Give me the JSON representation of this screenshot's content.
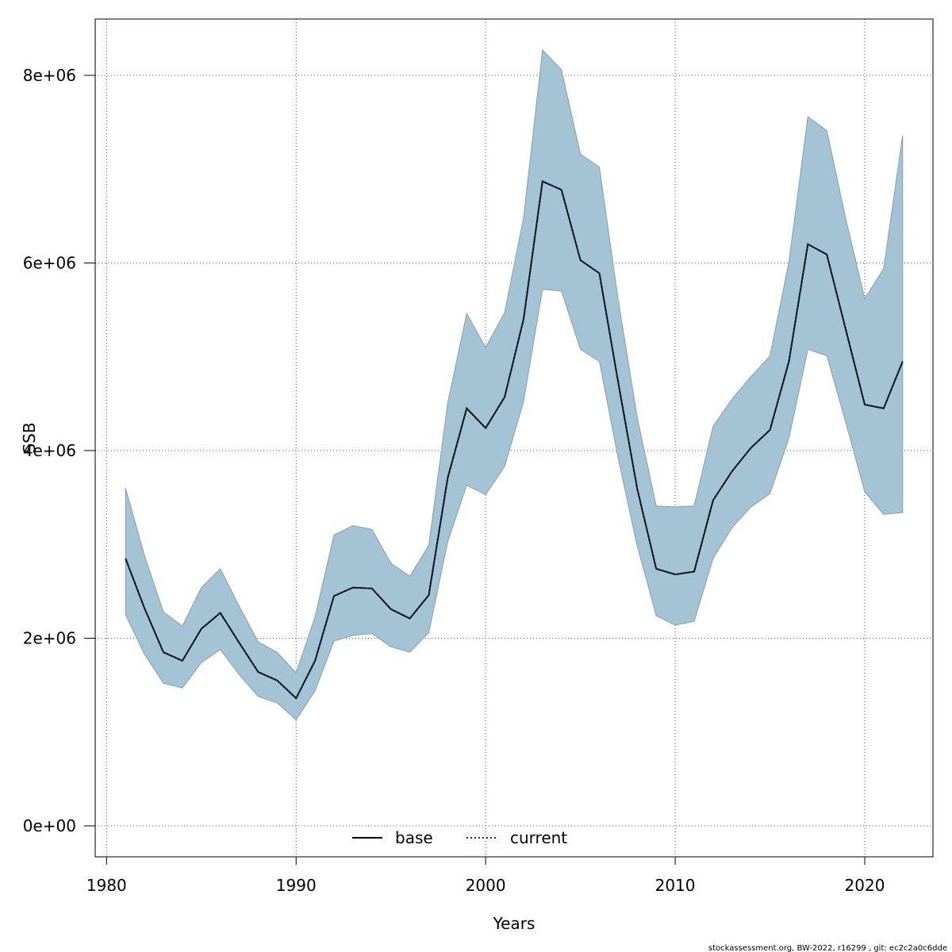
{
  "chart_data": {
    "type": "area",
    "xlabel": "Years",
    "ylabel": "SSB",
    "xlim": [
      1979.4,
      2023.6
    ],
    "ylim": [
      -330000,
      8600000
    ],
    "xticks": [
      1980,
      1990,
      2000,
      2010,
      2020
    ],
    "yticks": [
      0,
      2000000,
      4000000,
      6000000,
      8000000
    ],
    "ytick_labels": [
      "0e+00",
      "2e+06",
      "4e+06",
      "6e+06",
      "8e+06"
    ],
    "grid": true,
    "legend_position": "bottom-center",
    "x": [
      1981,
      1982,
      1983,
      1984,
      1985,
      1986,
      1987,
      1988,
      1989,
      1990,
      1991,
      1992,
      1993,
      1994,
      1995,
      1996,
      1997,
      1998,
      1999,
      2000,
      2001,
      2002,
      2003,
      2004,
      2005,
      2006,
      2007,
      2008,
      2009,
      2010,
      2011,
      2012,
      2013,
      2014,
      2015,
      2016,
      2017,
      2018,
      2019,
      2020,
      2021,
      2022
    ],
    "series": [
      {
        "name": "base",
        "style": "solid",
        "color": "#000000",
        "values": [
          2850000,
          2320000,
          1850000,
          1760000,
          2100000,
          2270000,
          1950000,
          1640000,
          1550000,
          1360000,
          1760000,
          2450000,
          2540000,
          2530000,
          2310000,
          2210000,
          2460000,
          3710000,
          4450000,
          4240000,
          4570000,
          5400000,
          6870000,
          6780000,
          6030000,
          5890000,
          4720000,
          3590000,
          2740000,
          2680000,
          2710000,
          3470000,
          3780000,
          4030000,
          4220000,
          4950000,
          6200000,
          6090000,
          5290000,
          4490000,
          4450000,
          4950000
        ]
      },
      {
        "name": "current",
        "style": "dotted",
        "color": "#0b3b56",
        "values": [
          2850000,
          2320000,
          1850000,
          1760000,
          2100000,
          2270000,
          1950000,
          1640000,
          1550000,
          1360000,
          1760000,
          2450000,
          2540000,
          2530000,
          2310000,
          2210000,
          2460000,
          3710000,
          4450000,
          4240000,
          4570000,
          5400000,
          6870000,
          6780000,
          6030000,
          5890000,
          4720000,
          3590000,
          2740000,
          2680000,
          2710000,
          3470000,
          3780000,
          4030000,
          4220000,
          4950000,
          6200000,
          6090000,
          5290000,
          4490000,
          4450000,
          4950000
        ]
      }
    ],
    "confidence_band": {
      "color": "#a4c4d6",
      "lower": [
        2250000,
        1830000,
        1520000,
        1470000,
        1740000,
        1880000,
        1610000,
        1380000,
        1310000,
        1130000,
        1440000,
        1970000,
        2030000,
        2050000,
        1910000,
        1850000,
        2060000,
        3030000,
        3630000,
        3530000,
        3830000,
        4520000,
        5720000,
        5700000,
        5080000,
        4950000,
        3910000,
        2980000,
        2240000,
        2140000,
        2180000,
        2850000,
        3180000,
        3400000,
        3540000,
        4130000,
        5080000,
        5010000,
        4300000,
        3560000,
        3320000,
        3340000
      ],
      "upper": [
        3600000,
        2880000,
        2280000,
        2130000,
        2540000,
        2740000,
        2340000,
        1960000,
        1850000,
        1630000,
        2230000,
        3100000,
        3200000,
        3160000,
        2800000,
        2660000,
        2990000,
        4510000,
        5460000,
        5100000,
        5470000,
        6480000,
        8270000,
        8060000,
        7160000,
        7020000,
        5600000,
        4350000,
        3410000,
        3400000,
        3410000,
        4260000,
        4550000,
        4790000,
        5010000,
        6010000,
        7560000,
        7410000,
        6470000,
        5620000,
        5940000,
        7360000
      ]
    }
  },
  "footer": "stockassessment.org, BW-2022, r16299 , git: ec2c2a0c6dde"
}
